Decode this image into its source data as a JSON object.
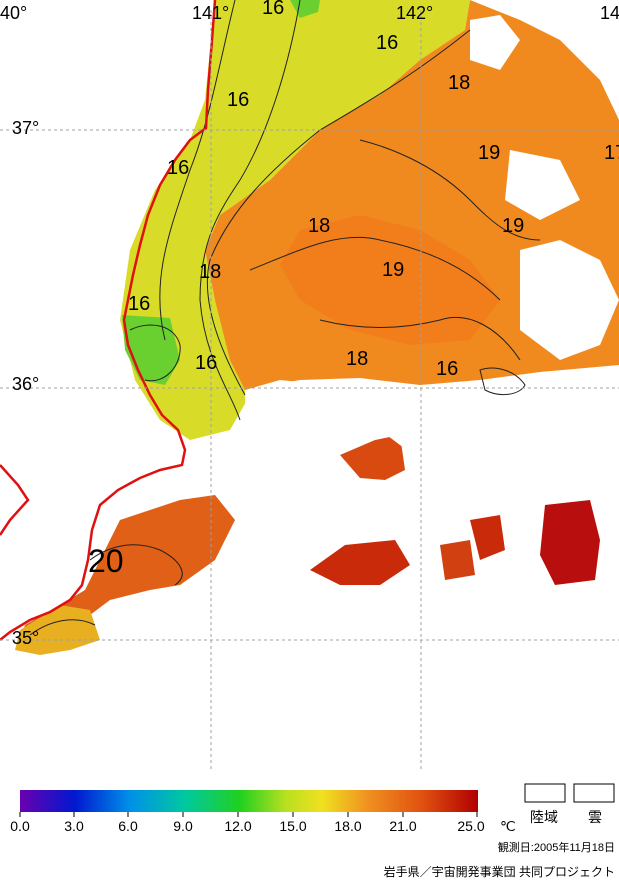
{
  "map": {
    "lon_labels": [
      "40°",
      "141°",
      "142°",
      "14"
    ],
    "lat_labels": [
      "37°",
      "36°",
      "35°"
    ],
    "contour_labels": [
      "16",
      "16",
      "16",
      "16",
      "16",
      "16",
      "16",
      "18",
      "18",
      "18",
      "18",
      "19",
      "19",
      "19",
      "20",
      "17"
    ]
  },
  "legend": {
    "ticks": [
      "0.0",
      "3.0",
      "6.0",
      "9.0",
      "12.0",
      "15.0",
      "18.0",
      "21.0",
      "25.0"
    ],
    "unit": "℃",
    "land_label": "陸域",
    "cloud_label": "雲",
    "colors": [
      "#6a00b0",
      "#0018d0",
      "#0090e8",
      "#00c8a0",
      "#20d020",
      "#b8e020",
      "#f0e020",
      "#f09020",
      "#e05010",
      "#b00000"
    ]
  },
  "footer": {
    "observation": "観測日:2005年11月18日",
    "credit": "岩手県／宇宙開発事業団 共同プロジェクト"
  }
}
